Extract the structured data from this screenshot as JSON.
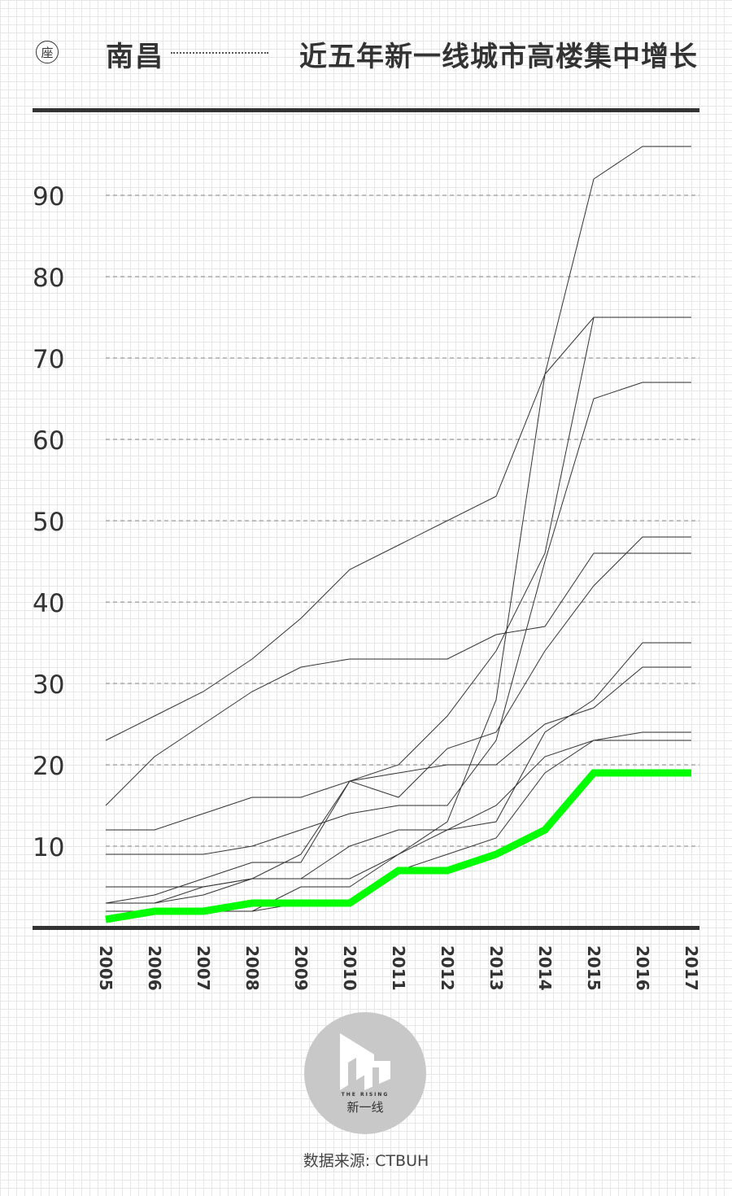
{
  "header": {
    "unit_label": "座",
    "city": "南昌",
    "title": "近五年新一线城市高楼集中增长"
  },
  "chart_data": {
    "type": "line",
    "title": "近五年新一线城市高楼集中增长",
    "xlabel": "",
    "ylabel": "座",
    "x": [
      "2005",
      "2006",
      "2007",
      "2008",
      "2009",
      "2010",
      "2011",
      "2012",
      "2013",
      "2014",
      "2015",
      "2016",
      "2017"
    ],
    "ylim": [
      0,
      100
    ],
    "yticks": [
      10,
      20,
      30,
      40,
      50,
      60,
      70,
      80,
      90
    ],
    "grid": true,
    "highlight_series": "南昌",
    "highlight_color": "#00ff00",
    "series": [
      {
        "values": [
          23,
          26,
          29,
          33,
          38,
          44,
          47,
          50,
          53,
          68,
          92,
          96,
          96
        ]
      },
      {
        "values": [
          15,
          21,
          25,
          29,
          32,
          33,
          33,
          33,
          36,
          37,
          46,
          46,
          46
        ]
      },
      {
        "values": [
          3,
          3,
          4,
          6,
          9,
          18,
          20,
          26,
          34,
          46,
          75,
          75,
          75
        ]
      },
      {
        "values": [
          2,
          2,
          2,
          2,
          5,
          5,
          9,
          13,
          28,
          68,
          75,
          75,
          75
        ]
      },
      {
        "values": [
          3,
          4,
          6,
          8,
          8,
          18,
          19,
          20,
          20,
          25,
          27,
          32,
          32
        ]
      },
      {
        "values": [
          12,
          12,
          14,
          16,
          16,
          18,
          16,
          22,
          24,
          34,
          42,
          48,
          48
        ]
      },
      {
        "values": [
          9,
          9,
          9,
          10,
          12,
          14,
          15,
          15,
          23,
          45,
          65,
          67,
          67
        ]
      },
      {
        "values": [
          3,
          3,
          5,
          6,
          6,
          6,
          9,
          12,
          15,
          21,
          23,
          24,
          24
        ]
      },
      {
        "values": [
          5,
          5,
          5,
          6,
          6,
          10,
          12,
          12,
          13,
          24,
          28,
          35,
          35
        ]
      },
      {
        "values": [
          2,
          2,
          2,
          2,
          3,
          3,
          7,
          9,
          11,
          19,
          23,
          23,
          23
        ]
      },
      {
        "name": "南昌",
        "values": [
          1,
          2,
          2,
          3,
          3,
          3,
          7,
          7,
          9,
          12,
          19,
          19,
          19
        ]
      }
    ]
  },
  "logo": {
    "small_text": "THE RISING",
    "text": "新一线"
  },
  "source": "数据来源: CTBUH"
}
